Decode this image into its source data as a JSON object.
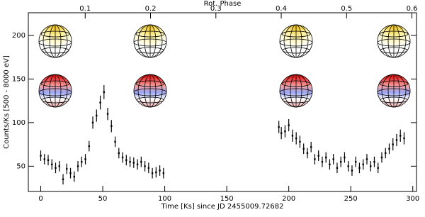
{
  "chart_data": {
    "type": "errorbar",
    "x_label": "Time [Ks] since JD 2455009.72682",
    "y_label": "Counts/Ks [500 - 8000 eV]",
    "x2_label": "Rot. Phase",
    "xlim": [
      -10,
      303
    ],
    "ylim": [
      21,
      226
    ],
    "x2lim": [
      0.013,
      0.607
    ],
    "xticks": [
      0,
      50,
      100,
      150,
      200,
      250,
      300
    ],
    "yticks": [
      50,
      100,
      150,
      200
    ],
    "x2ticks": [
      0.1,
      0.2,
      0.3,
      0.4,
      0.5,
      0.6
    ],
    "color": "#000000",
    "x": [
      0,
      3,
      6,
      9,
      12,
      15,
      18,
      21,
      24,
      27,
      30,
      33,
      36,
      39,
      42,
      45,
      48,
      51,
      54,
      57,
      60,
      63,
      66,
      69,
      72,
      75,
      78,
      81,
      84,
      87,
      90,
      93,
      96,
      99,
      192,
      194,
      197,
      200,
      203,
      206,
      209,
      212,
      215,
      218,
      221,
      224,
      227,
      230,
      233,
      236,
      239,
      242,
      245,
      248,
      251,
      254,
      257,
      260,
      263,
      266,
      269,
      272,
      275,
      278,
      281,
      284,
      287,
      290,
      293
    ],
    "values": [
      62,
      58,
      57,
      52,
      48,
      50,
      35,
      47,
      42,
      38,
      50,
      55,
      58,
      73,
      100,
      108,
      123,
      135,
      110,
      96,
      78,
      65,
      60,
      57,
      55,
      54,
      52,
      55,
      50,
      48,
      42,
      43,
      45,
      42,
      95,
      88,
      90,
      97,
      85,
      82,
      78,
      70,
      65,
      72,
      58,
      62,
      55,
      60,
      52,
      58,
      48,
      55,
      60,
      50,
      45,
      55,
      48,
      52,
      58,
      50,
      55,
      48,
      60,
      65,
      70,
      75,
      80,
      85,
      82
    ],
    "errors": [
      6,
      6,
      6,
      6,
      6,
      6,
      6,
      6,
      6,
      6,
      6,
      6,
      6,
      6,
      7,
      7,
      8,
      8,
      7,
      7,
      6,
      6,
      6,
      6,
      6,
      6,
      6,
      6,
      6,
      6,
      6,
      6,
      6,
      6,
      7,
      7,
      7,
      7,
      7,
      7,
      7,
      6,
      6,
      6,
      6,
      6,
      6,
      6,
      6,
      6,
      6,
      6,
      6,
      6,
      6,
      6,
      6,
      6,
      6,
      6,
      6,
      6,
      6,
      6,
      6,
      7,
      7,
      7,
      7
    ]
  }
}
